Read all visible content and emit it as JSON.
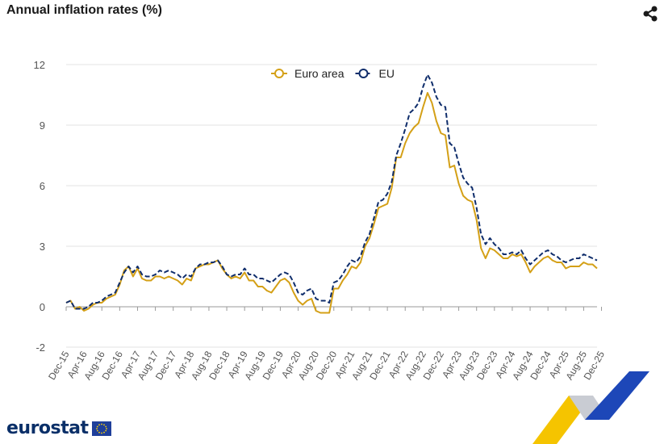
{
  "header": {
    "title": "Annual inflation rates (%)",
    "share_icon": "share-icon"
  },
  "footer": {
    "logo_text": "eurostat",
    "logo_flag_icon": "eu-flag-icon"
  },
  "colors": {
    "euro_area": "#d4a017",
    "eu": "#0f2d6b",
    "grid": "#e3e3e3",
    "axis_text": "#555555"
  },
  "chart_data": {
    "type": "line",
    "title": "Annual inflation rates (%)",
    "xlabel": "",
    "ylabel": "",
    "ylim": [
      -2,
      12
    ],
    "yticks": [
      -2,
      0,
      3,
      6,
      9,
      12
    ],
    "grid": true,
    "legend_position": "top-center",
    "x_start": "Dec-15",
    "x_end": "Dec-25",
    "x_tick_labels": [
      "Dec-15",
      "Apr-16",
      "Aug-16",
      "Dec-16",
      "Apr-17",
      "Aug-17",
      "Dec-17",
      "Apr-18",
      "Aug-18",
      "Dec-18",
      "Apr-19",
      "Aug-19",
      "Dec-19",
      "Apr-20",
      "Aug-20",
      "Dec-20",
      "Apr-21",
      "Aug-21",
      "Dec-21",
      "Apr-22",
      "Aug-22",
      "Dec-22",
      "Apr-23",
      "Aug-23",
      "Dec-23",
      "Apr-24",
      "Aug-24",
      "Dec-24",
      "Apr-25",
      "Aug-25",
      "Dec-25"
    ],
    "series": [
      {
        "name": "Euro area",
        "style": "solid",
        "values": [
          0.2,
          0.3,
          -0.1,
          0.0,
          -0.2,
          -0.1,
          0.1,
          0.2,
          0.2,
          0.4,
          0.5,
          0.6,
          1.1,
          1.8,
          2.0,
          1.5,
          1.9,
          1.4,
          1.3,
          1.3,
          1.5,
          1.5,
          1.4,
          1.5,
          1.4,
          1.3,
          1.1,
          1.4,
          1.3,
          1.9,
          2.0,
          2.1,
          2.1,
          2.2,
          2.3,
          1.9,
          1.6,
          1.4,
          1.5,
          1.4,
          1.7,
          1.3,
          1.3,
          1.0,
          1.0,
          0.8,
          0.7,
          1.0,
          1.3,
          1.4,
          1.2,
          0.7,
          0.3,
          0.1,
          0.3,
          0.4,
          -0.2,
          -0.3,
          -0.3,
          -0.3,
          0.9,
          0.9,
          1.3,
          1.6,
          2.0,
          1.9,
          2.2,
          3.0,
          3.4,
          4.1,
          4.9,
          5.0,
          5.1,
          5.9,
          7.4,
          7.4,
          8.1,
          8.6,
          8.9,
          9.1,
          9.9,
          10.6,
          10.1,
          9.2,
          8.6,
          8.5,
          6.9,
          7.0,
          6.1,
          5.5,
          5.3,
          5.2,
          4.3,
          2.9,
          2.4,
          2.9,
          2.8,
          2.6,
          2.4,
          2.4,
          2.6,
          2.5,
          2.6,
          2.2,
          1.7,
          2.0,
          2.2,
          2.4,
          2.5,
          2.3,
          2.2,
          2.2,
          1.9,
          2.0,
          2.0,
          2.0,
          2.2,
          2.1,
          2.1,
          1.9
        ],
        "color": "#d4a017"
      },
      {
        "name": "EU",
        "style": "dashed",
        "values": [
          0.2,
          0.3,
          -0.1,
          -0.1,
          -0.1,
          0.0,
          0.2,
          0.2,
          0.3,
          0.5,
          0.6,
          0.7,
          1.2,
          1.7,
          2.0,
          1.7,
          2.0,
          1.6,
          1.5,
          1.5,
          1.6,
          1.8,
          1.7,
          1.8,
          1.7,
          1.6,
          1.4,
          1.6,
          1.5,
          1.9,
          2.1,
          2.1,
          2.2,
          2.2,
          2.3,
          2.0,
          1.6,
          1.5,
          1.6,
          1.6,
          1.9,
          1.6,
          1.6,
          1.4,
          1.4,
          1.3,
          1.2,
          1.4,
          1.6,
          1.7,
          1.6,
          1.2,
          0.7,
          0.6,
          0.8,
          0.9,
          0.4,
          0.3,
          0.3,
          0.2,
          1.2,
          1.3,
          1.6,
          2.0,
          2.3,
          2.2,
          2.5,
          3.2,
          3.6,
          4.4,
          5.2,
          5.3,
          5.6,
          6.2,
          7.5,
          8.1,
          8.8,
          9.6,
          9.8,
          10.1,
          10.9,
          11.5,
          11.1,
          10.4,
          10.0,
          9.9,
          8.1,
          7.9,
          7.1,
          6.4,
          6.1,
          5.9,
          4.9,
          3.6,
          3.1,
          3.4,
          3.1,
          2.9,
          2.6,
          2.6,
          2.7,
          2.6,
          2.8,
          2.4,
          2.1,
          2.3,
          2.5,
          2.7,
          2.8,
          2.6,
          2.5,
          2.3,
          2.2,
          2.3,
          2.4,
          2.4,
          2.6,
          2.5,
          2.4,
          2.3
        ],
        "color": "#0f2d6b"
      }
    ]
  }
}
